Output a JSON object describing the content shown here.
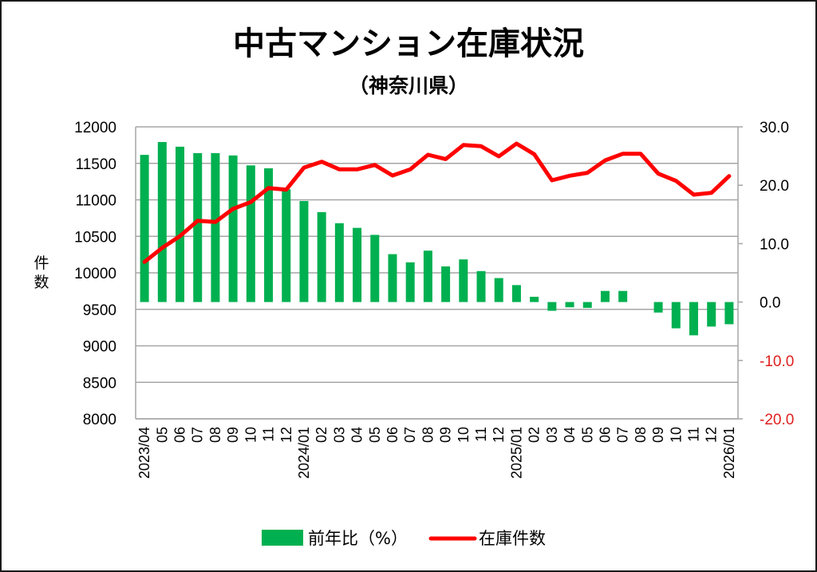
{
  "chart_data": {
    "type": "bar+line",
    "title": "中古マンション在庫状況",
    "subtitle": "（神奈川県）",
    "y_left_label": "件数",
    "y_left_range": [
      8000,
      12000
    ],
    "y_left_ticks": [
      "12000",
      "11500",
      "11000",
      "10500",
      "10000",
      "9500",
      "9000",
      "8500",
      "8000"
    ],
    "y_left_tick_values": [
      12000,
      11500,
      11000,
      10500,
      10000,
      9500,
      9000,
      8500,
      8000
    ],
    "y_right_range": [
      -20,
      30
    ],
    "y_right_ticks": [
      "30.0",
      "20.0",
      "10.0",
      "0.0",
      "-10.0",
      "-20.0"
    ],
    "y_right_tick_values": [
      30,
      20,
      10,
      0,
      -10,
      -20
    ],
    "grid": true,
    "legend_position": "bottom",
    "categories": [
      "2023/04",
      "05",
      "06",
      "07",
      "08",
      "09",
      "10",
      "11",
      "12",
      "2024/01",
      "02",
      "03",
      "04",
      "05",
      "06",
      "07",
      "08",
      "09",
      "10",
      "11",
      "12",
      "2025/01",
      "02",
      "03",
      "04",
      "05",
      "06",
      "07",
      "08",
      "09",
      "10",
      "11",
      "12",
      "2026/01"
    ],
    "series": [
      {
        "name": "前年比（%）",
        "type": "bar",
        "axis": "right",
        "color": "#00b050",
        "values": [
          25.2,
          27.4,
          26.6,
          25.5,
          25.5,
          25.1,
          23.4,
          22.9,
          19.3,
          17.3,
          15.4,
          13.5,
          12.7,
          11.5,
          8.2,
          6.8,
          8.8,
          6.1,
          7.3,
          5.3,
          4.1,
          2.9,
          0.9,
          -1.5,
          -0.9,
          -1.0,
          1.9,
          1.9,
          0.0,
          -1.8,
          -4.5,
          -5.7,
          -4.2,
          -3.8
        ]
      },
      {
        "name": "在庫件数",
        "type": "line",
        "axis": "left",
        "color": "#ff0000",
        "values": [
          10150,
          10342,
          10503,
          10714,
          10696,
          10877,
          10969,
          11162,
          11140,
          11442,
          11522,
          11417,
          11417,
          11478,
          11333,
          11417,
          11617,
          11559,
          11751,
          11734,
          11596,
          11770,
          11625,
          11268,
          11330,
          11370,
          11541,
          11632,
          11632,
          11358,
          11260,
          11071,
          11096,
          11326
        ]
      }
    ]
  }
}
